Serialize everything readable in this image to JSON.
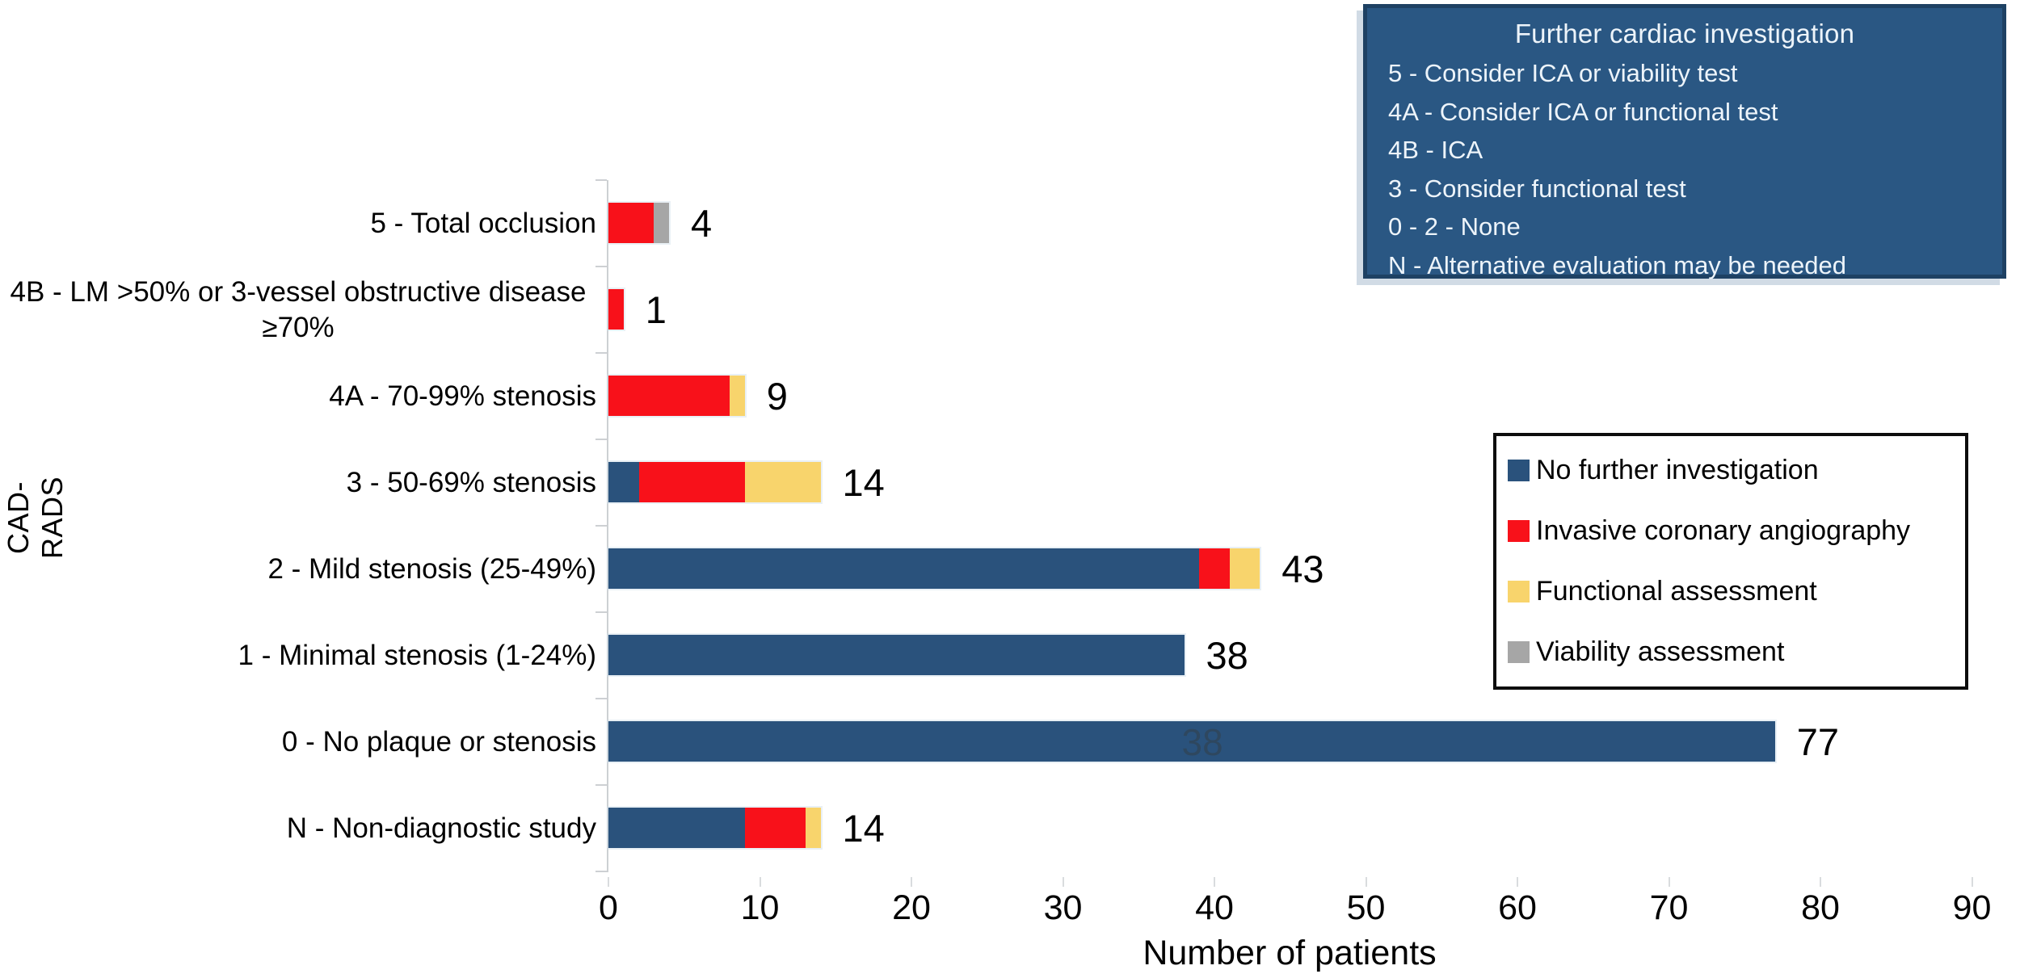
{
  "colors": {
    "bar_blue": "#2A527C",
    "bar_red": "#F8111A",
    "bar_yellow": "#F8D46C",
    "bar_gray": "#A6A6A6",
    "info_box_bg": "#2A5783",
    "info_box_border": "#1E4163",
    "info_box_text": "#EDF4FA",
    "axis_gray": "#CDD0D3",
    "legend_border": "#0D0D0D"
  },
  "info_box": {
    "title": "Further cardiac investigation",
    "lines": [
      "5 - Consider ICA or viability test",
      "4A - Consider ICA or functional test",
      "4B - ICA",
      "3 - Consider functional test",
      "0 - 2 - None",
      "N - Alternative evaluation may be needed"
    ]
  },
  "legend": {
    "items": [
      {
        "label": "No further investigation",
        "color": "#2A527C"
      },
      {
        "label": "Invasive coronary angiography",
        "color": "#F8111A"
      },
      {
        "label": "Functional assessment",
        "color": "#F8D46C"
      },
      {
        "label": "Viability assessment",
        "color": "#A6A6A6"
      }
    ]
  },
  "chart_data": {
    "type": "bar",
    "orientation": "horizontal",
    "stacked": true,
    "xlabel": "Number of patients",
    "ylabel": "CAD-RADS",
    "xlim": [
      0,
      90
    ],
    "xticks": [
      0,
      10,
      20,
      30,
      40,
      50,
      60,
      70,
      80,
      90
    ],
    "grid": false,
    "legend_position": "right",
    "series_names": [
      "No further investigation",
      "Invasive coronary angiography",
      "Functional assessment",
      "Viability assessment"
    ],
    "series_colors": [
      "#2A527C",
      "#F8111A",
      "#F8D46C",
      "#A6A6A6"
    ],
    "categories": [
      {
        "label": "5 - Total occlusion",
        "values": [
          0,
          3,
          0,
          1
        ],
        "total": 4
      },
      {
        "label": "4B - LM >50% or 3-vessel obstructive disease",
        "label_line2": "≥70%",
        "values": [
          0,
          1,
          0,
          0
        ],
        "total": 1
      },
      {
        "label": "4A - 70-99% stenosis",
        "values": [
          0,
          8,
          1,
          0
        ],
        "total": 9
      },
      {
        "label": "3 - 50-69% stenosis",
        "values": [
          2,
          7,
          5,
          0
        ],
        "total": 14
      },
      {
        "label": "2 - Mild stenosis (25-49%)",
        "values": [
          39,
          2,
          2,
          0
        ],
        "total": 43
      },
      {
        "label": "1 - Minimal stenosis (1-24%)",
        "values": [
          38,
          0,
          0,
          0
        ],
        "total": 38
      },
      {
        "label": "0 - No plaque or stenosis",
        "values": [
          77,
          0,
          0,
          0
        ],
        "total": 77
      },
      {
        "label": "N - Non-diagnostic study",
        "values": [
          9,
          4,
          1,
          0
        ],
        "total": 14
      }
    ],
    "ghost_label": {
      "text": "38",
      "category_index": 6,
      "x_value": 38
    }
  }
}
